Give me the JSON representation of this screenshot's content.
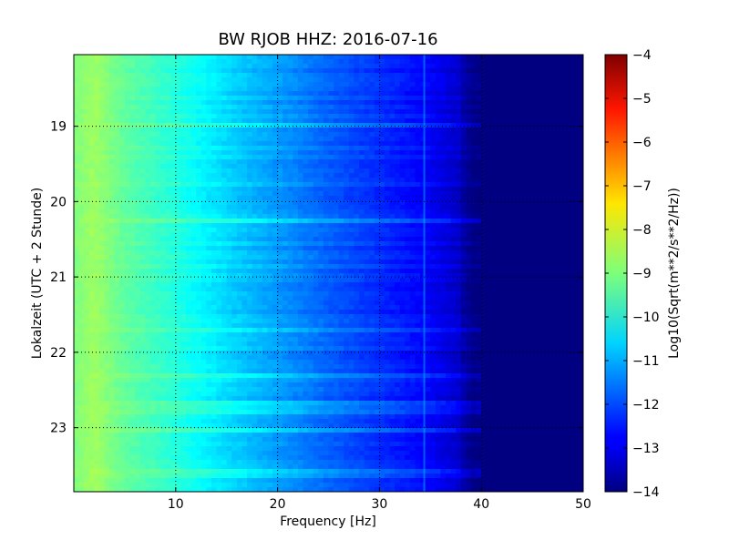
{
  "chart_data": {
    "type": "heatmap",
    "title": "BW RJOB HHZ: 2016-07-16",
    "xlabel": "Frequency [Hz]",
    "ylabel": "Lokalzeit (UTC + 2 Stunde)",
    "xlim": [
      0,
      50
    ],
    "ylim": [
      23.85,
      18.05
    ],
    "x_ticks": [
      10,
      20,
      30,
      40,
      50
    ],
    "x_tick_labels": [
      "10",
      "20",
      "30",
      "40",
      "50"
    ],
    "y_ticks": [
      19,
      20,
      21,
      22,
      23
    ],
    "y_tick_labels": [
      "19",
      "20",
      "21",
      "22",
      "23"
    ],
    "grid": true,
    "colormap": "jet",
    "colorbar": {
      "label": "Log10(Sqrt(m**2/s**2/Hz))",
      "range": [
        -14,
        -4
      ],
      "ticks": [
        -14,
        -13,
        -12,
        -11,
        -10,
        -9,
        -8,
        -7,
        -6,
        -5,
        -4
      ],
      "tick_labels": [
        "−14",
        "−13",
        "−12",
        "−11",
        "−10",
        "−9",
        "−8",
        "−7",
        "−6",
        "−5",
        "−4"
      ]
    },
    "spectrum_profile": {
      "frequency_hz": [
        0,
        2,
        5,
        10,
        15,
        20,
        25,
        30,
        35,
        38,
        40,
        42,
        50
      ],
      "log_amplitude": [
        -9.0,
        -8.7,
        -9.3,
        -9.9,
        -10.6,
        -11.2,
        -11.8,
        -12.3,
        -12.8,
        -13.3,
        -14.0,
        -14.0,
        -14.0
      ]
    },
    "tonal_line": {
      "frequency_hz": 34.4,
      "log_amplitude": -11.0
    }
  }
}
